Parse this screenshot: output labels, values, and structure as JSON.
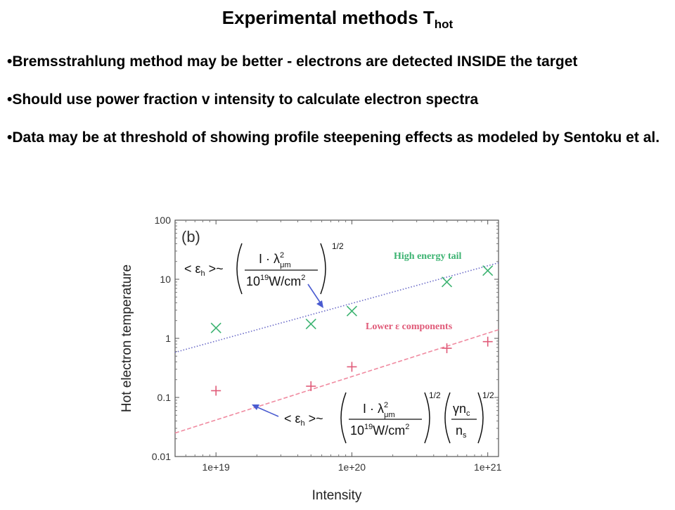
{
  "slide": {
    "title_main": "Experimental methods T",
    "title_sub": "hot",
    "bullets": [
      "•Bremsstrahlung method may be better - electrons are detected INSIDE the target",
      "•Should use power fraction v intensity to calculate electron spectra",
      "•Data may be at threshold of showing profile steepening effects as modeled by Sentoku et al."
    ]
  },
  "chart_data": {
    "type": "scatter",
    "panel_label": "(b)",
    "xlabel": "Intensity",
    "ylabel": "Hot electron temperature",
    "x_scale": "log",
    "y_scale": "log",
    "xlim": [
      5e+18,
      1.2e+21
    ],
    "ylim": [
      0.01,
      100
    ],
    "x_ticks": [
      "1e+19",
      "1e+20",
      "1e+21"
    ],
    "y_ticks": [
      "0.01",
      "0.1",
      "1",
      "10",
      "100"
    ],
    "series": [
      {
        "name": "High energy tail",
        "color": "#3cb371",
        "marker": "x",
        "points": [
          [
            1e+19,
            1.5
          ],
          [
            5e+19,
            1.75
          ],
          [
            1e+20,
            2.9
          ],
          [
            5e+20,
            9.0
          ],
          [
            1e+21,
            14.0
          ]
        ],
        "fit": {
          "x": [
            5e+18,
            1.2e+21
          ],
          "y": [
            0.58,
            19
          ],
          "style": "dotted",
          "color": "#6b6bc8"
        }
      },
      {
        "name": "Lower ε components",
        "color": "#e05a78",
        "marker": "+",
        "points": [
          [
            1e+19,
            0.13
          ],
          [
            5e+19,
            0.155
          ],
          [
            1e+20,
            0.33
          ],
          [
            5e+20,
            0.68
          ],
          [
            1e+21,
            0.88
          ]
        ],
        "fit": {
          "x": [
            5e+18,
            1.2e+21
          ],
          "y": [
            0.025,
            1.4
          ],
          "style": "dashed",
          "color": "#f08aa0"
        }
      }
    ],
    "formula_upper": {
      "lhs": "< ε",
      "lhs_sub": "h",
      "rel": " >~",
      "num": "I · λ",
      "num_sup": "2",
      "num_sub": "μm",
      "den": "10",
      "den_sup": "19",
      "den_unit": "W/cm",
      "den_unit_sup": "2",
      "power": "1/2"
    },
    "formula_lower": {
      "lhs": "< ε",
      "lhs_sub": "h",
      "rel": " >~",
      "num": "I · λ",
      "num_sup": "2",
      "num_sub": "μm",
      "den": "10",
      "den_sup": "19",
      "den_unit": "W/cm",
      "den_unit_sup": "2",
      "power": "1/2",
      "num2": "γn",
      "num2_sub": "c",
      "den2": "n",
      "den2_sub": "s",
      "power2": "1/2"
    }
  }
}
